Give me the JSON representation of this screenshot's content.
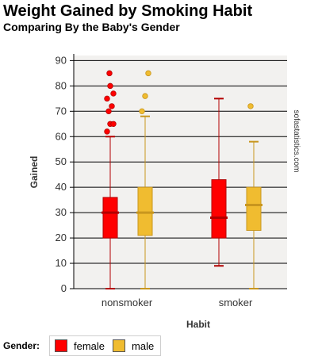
{
  "chart_data": {
    "type": "boxplot",
    "title": "Weight Gained by Smoking Habit",
    "subtitle": "Comparing By the Baby's Gender",
    "xlabel": "Habit",
    "ylabel": "Gained",
    "ylim": [
      0,
      92
    ],
    "yticks": [
      0,
      10,
      20,
      30,
      40,
      50,
      60,
      70,
      80,
      90
    ],
    "grid": true,
    "categories": [
      "nonsmoker",
      "smoker"
    ],
    "series": [
      {
        "name": "female",
        "color": "#ff0000",
        "boxes": [
          {
            "category": "nonsmoker",
            "whisker_low": 0,
            "q1": 20,
            "median": 30,
            "q3": 36,
            "whisker_high": 60,
            "outliers": [
              62,
              65,
              65,
              70,
              72,
              75,
              77,
              80,
              85
            ]
          },
          {
            "category": "smoker",
            "whisker_low": 9,
            "q1": 20,
            "median": 28,
            "q3": 43,
            "whisker_high": 75,
            "outliers": []
          }
        ]
      },
      {
        "name": "male",
        "color": "#f0bc30",
        "boxes": [
          {
            "category": "nonsmoker",
            "whisker_low": 0,
            "q1": 21,
            "median": 30,
            "q3": 40,
            "whisker_high": 68,
            "outliers": [
              70,
              76,
              85
            ]
          },
          {
            "category": "smoker",
            "whisker_low": 0,
            "q1": 23,
            "median": 33,
            "q3": 40,
            "whisker_high": 58,
            "outliers": [
              72
            ]
          }
        ]
      }
    ],
    "watermark": "sofastatistics.com",
    "legend": {
      "title": "Gender:",
      "position": "bottom-left"
    }
  }
}
